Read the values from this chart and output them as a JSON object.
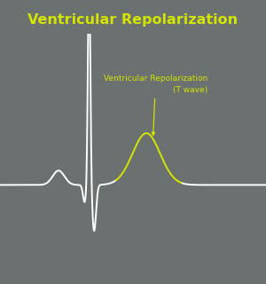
{
  "title": "Ventricular Repolarization",
  "title_color": "#d4e600",
  "title_fontsize": 11.5,
  "background_color": "#6b7070",
  "ecg_color_white": "#ffffff",
  "ecg_color_yellow": "#d4e600",
  "annotation_text": "Ventricular Repolarization\n(T wave)",
  "annotation_color": "#d4e600",
  "annotation_fontsize": 6.5,
  "arrow_color": "#d4e600",
  "figsize": [
    3.0,
    3.2
  ],
  "dpi": 100
}
